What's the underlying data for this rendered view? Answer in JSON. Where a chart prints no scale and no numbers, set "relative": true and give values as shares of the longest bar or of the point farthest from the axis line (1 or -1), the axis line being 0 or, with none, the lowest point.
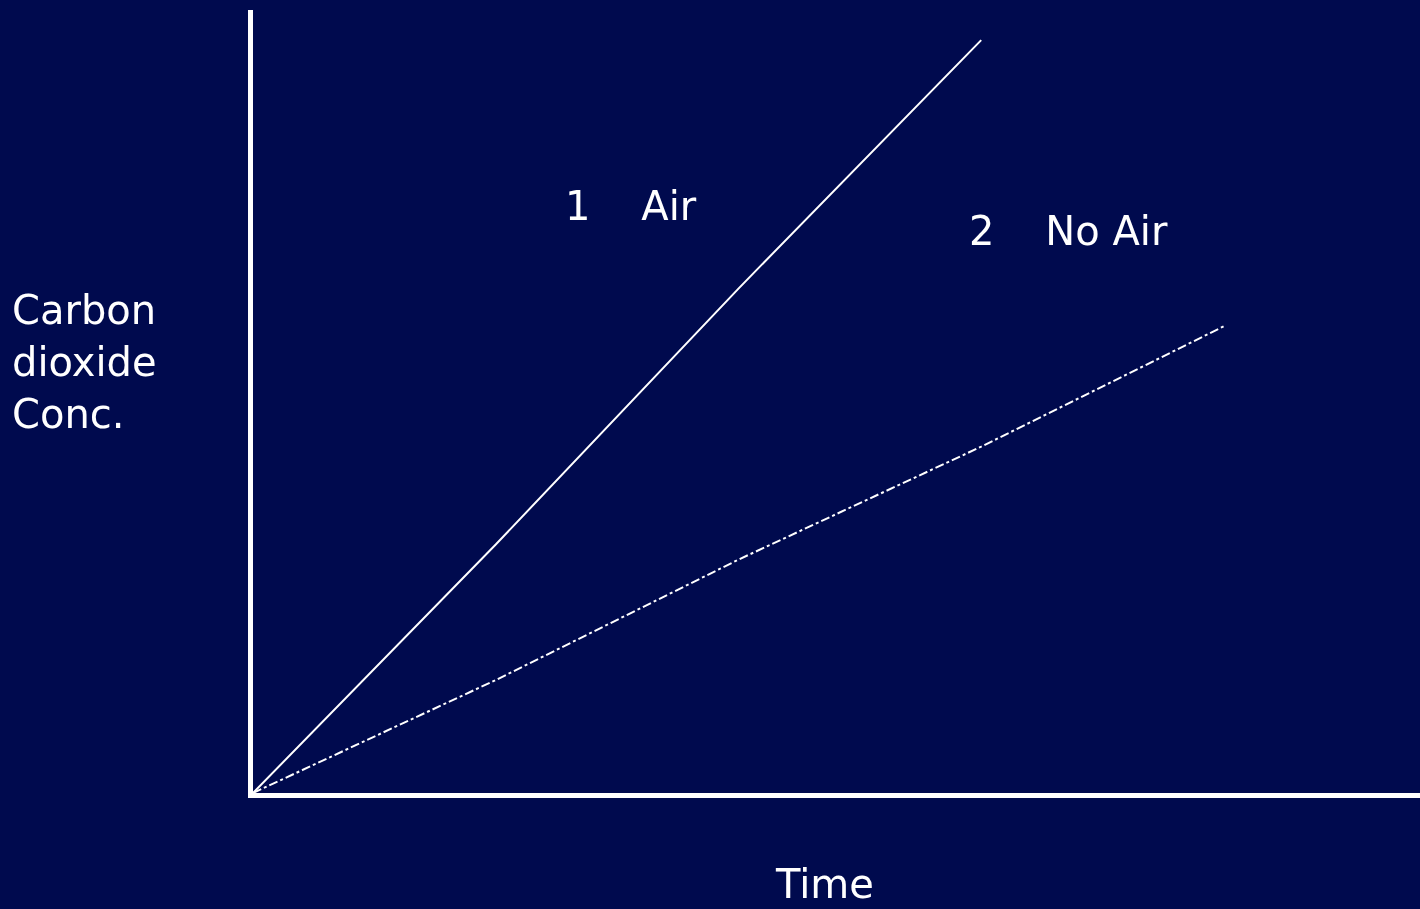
{
  "chart_data": {
    "type": "line",
    "xlabel": "Time",
    "ylabel": "Carbon dioxide Conc.",
    "relative": true,
    "grid": false,
    "legend": false,
    "marker": "none",
    "categories": [
      null,
      null,
      null,
      null,
      null
    ],
    "series": [
      {
        "name": "1    Air",
        "color": "#ffffff",
        "line_style": "solid",
        "values": [
          0,
          0.33,
          0.67,
          1,
          null
        ]
      },
      {
        "name": "2    No Air",
        "color": "#ffffff",
        "line_style": "dashed",
        "values": [
          0,
          0.15,
          0.31,
          0.46,
          0.62
        ]
      }
    ]
  }
}
